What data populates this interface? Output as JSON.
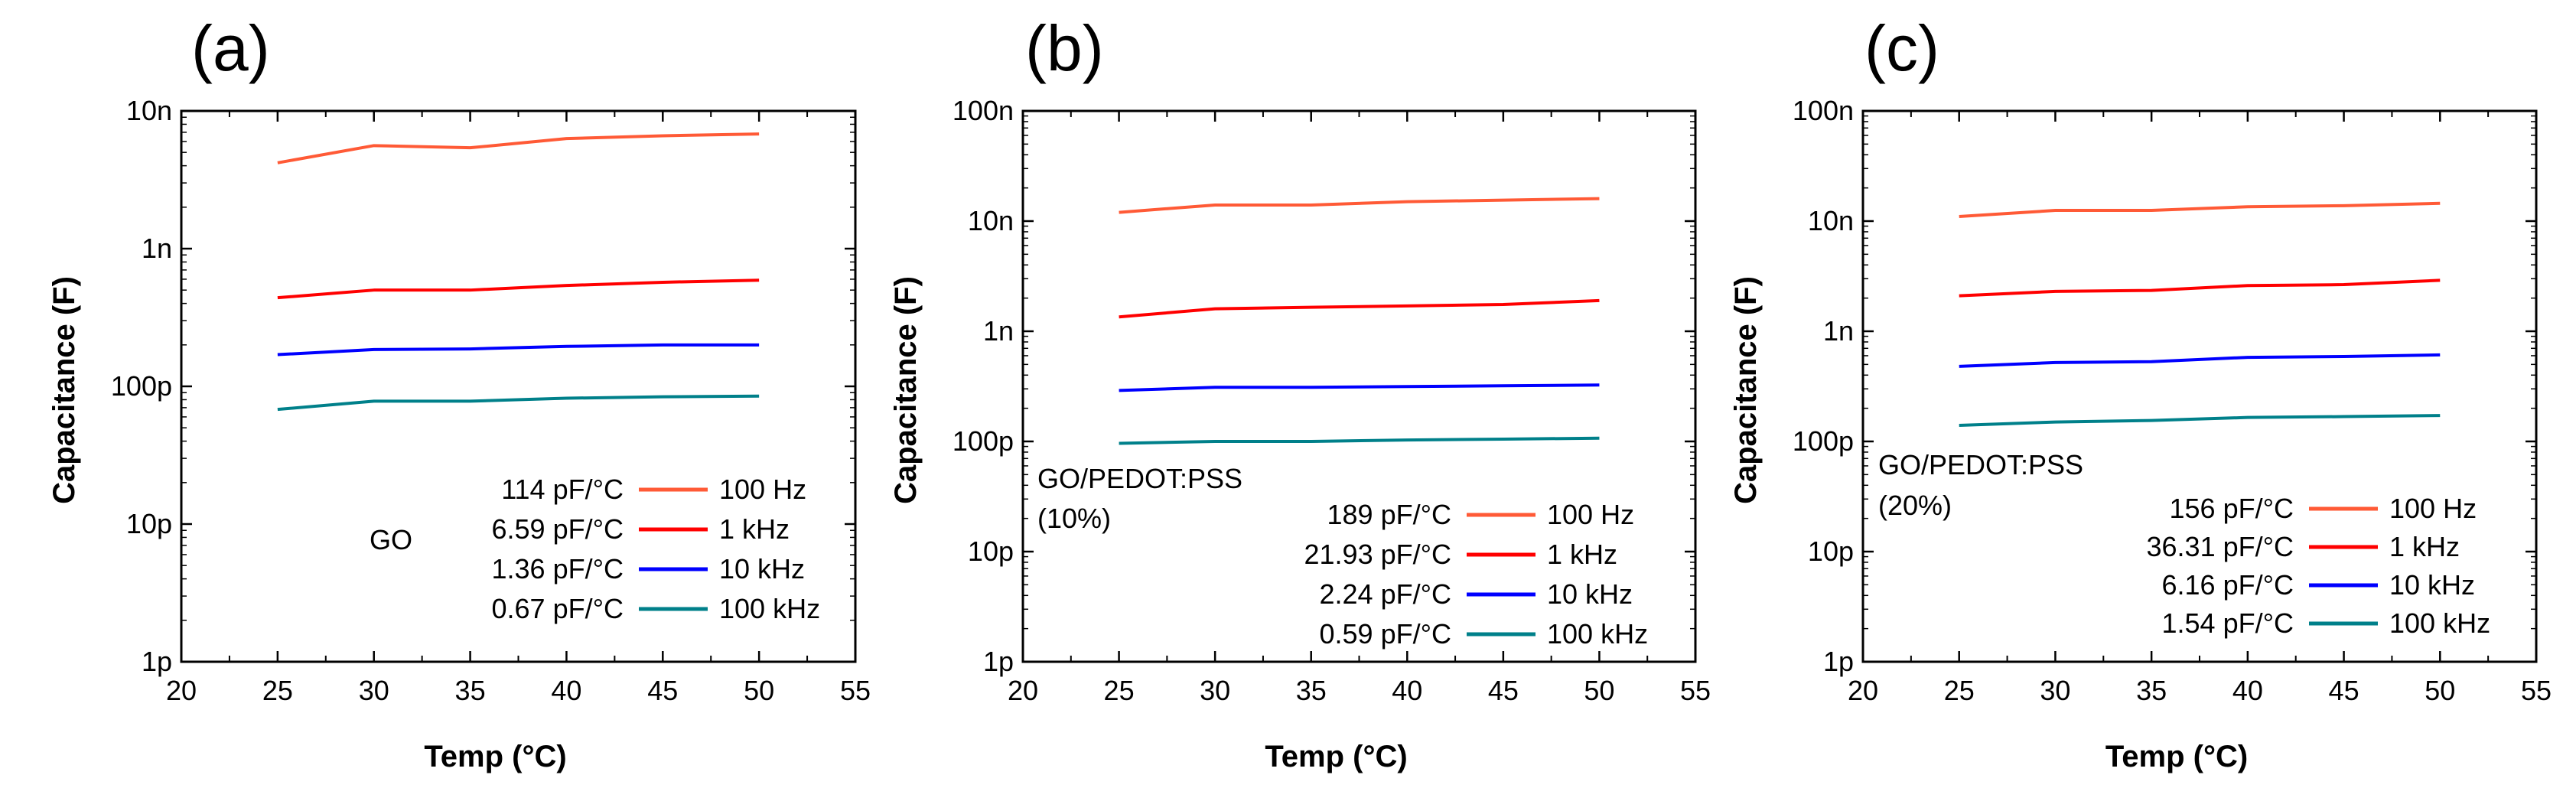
{
  "chart_data": [
    {
      "type": "line",
      "panel_label": "(a)",
      "sample_label": [
        "GO"
      ],
      "xlabel": "Temp (°C)",
      "ylabel": "Capacitance (F)",
      "xlim": [
        20,
        55
      ],
      "xticks": [
        20,
        25,
        30,
        35,
        40,
        45,
        50,
        55
      ],
      "yscale": "log",
      "ylim": [
        1e-12,
        1e-08
      ],
      "yticks": [
        {
          "value": 1e-12,
          "label": "1p"
        },
        {
          "value": 1e-11,
          "label": "10p"
        },
        {
          "value": 1e-10,
          "label": "100p"
        },
        {
          "value": 1e-09,
          "label": "1n"
        },
        {
          "value": 1e-08,
          "label": "10n"
        }
      ],
      "x": [
        25,
        30,
        35,
        40,
        45,
        50
      ],
      "series": [
        {
          "name": "100 Hz",
          "slope": "114 pF/°C",
          "color": "#ff5a36",
          "values": [
            4.2e-09,
            5.6e-09,
            5.4e-09,
            6.3e-09,
            6.6e-09,
            6.8e-09
          ]
        },
        {
          "name": "1 kHz",
          "slope": "6.59 pF/°C",
          "color": "#ff0000",
          "values": [
            4.4e-10,
            5e-10,
            5e-10,
            5.4e-10,
            5.7e-10,
            5.9e-10
          ]
        },
        {
          "name": "10 kHz",
          "slope": "1.36 pF/°C",
          "color": "#0000ff",
          "values": [
            1.7e-10,
            1.85e-10,
            1.87e-10,
            1.95e-10,
            2e-10,
            2e-10
          ]
        },
        {
          "name": "100 kHz",
          "slope": "0.67 pF/°C",
          "color": "#00808a",
          "values": [
            6.8e-11,
            7.8e-11,
            7.8e-11,
            8.2e-11,
            8.4e-11,
            8.5e-11
          ]
        }
      ],
      "grid": false,
      "legend_position": "bottom-right"
    },
    {
      "type": "line",
      "panel_label": "(b)",
      "sample_label": [
        "GO/PEDOT:PSS",
        "(10%)"
      ],
      "xlabel": "Temp (°C)",
      "ylabel": "Capacitance (F)",
      "xlim": [
        20,
        55
      ],
      "xticks": [
        20,
        25,
        30,
        35,
        40,
        45,
        50,
        55
      ],
      "yscale": "log",
      "ylim": [
        1e-12,
        1e-07
      ],
      "yticks": [
        {
          "value": 1e-12,
          "label": "1p"
        },
        {
          "value": 1e-11,
          "label": "10p"
        },
        {
          "value": 1e-10,
          "label": "100p"
        },
        {
          "value": 1e-09,
          "label": "1n"
        },
        {
          "value": 1e-08,
          "label": "10n"
        },
        {
          "value": 1e-07,
          "label": "100n"
        }
      ],
      "x": [
        25,
        30,
        35,
        40,
        45,
        50
      ],
      "series": [
        {
          "name": "100 Hz",
          "slope": "189 pF/°C",
          "color": "#ff5a36",
          "values": [
            1.2e-08,
            1.4e-08,
            1.4e-08,
            1.5e-08,
            1.55e-08,
            1.6e-08
          ]
        },
        {
          "name": "1 kHz",
          "slope": "21.93 pF/°C",
          "color": "#ff0000",
          "values": [
            1.35e-09,
            1.6e-09,
            1.65e-09,
            1.7e-09,
            1.75e-09,
            1.9e-09
          ]
        },
        {
          "name": "10 kHz",
          "slope": "2.24 pF/°C",
          "color": "#0000ff",
          "values": [
            2.9e-10,
            3.1e-10,
            3.1e-10,
            3.15e-10,
            3.2e-10,
            3.25e-10
          ]
        },
        {
          "name": "100 kHz",
          "slope": "0.59 pF/°C",
          "color": "#00808a",
          "values": [
            9.6e-11,
            1e-10,
            1e-10,
            1.03e-10,
            1.05e-10,
            1.07e-10
          ]
        }
      ],
      "grid": false,
      "legend_position": "bottom-right"
    },
    {
      "type": "line",
      "panel_label": "(c)",
      "sample_label": [
        "GO/PEDOT:PSS",
        "(20%)"
      ],
      "xlabel": "Temp (°C)",
      "ylabel": "Capacitance (F)",
      "xlim": [
        20,
        55
      ],
      "xticks": [
        20,
        25,
        30,
        35,
        40,
        45,
        50,
        55
      ],
      "yscale": "log",
      "ylim": [
        1e-12,
        1e-07
      ],
      "yticks": [
        {
          "value": 1e-12,
          "label": "1p"
        },
        {
          "value": 1e-11,
          "label": "10p"
        },
        {
          "value": 1e-10,
          "label": "100p"
        },
        {
          "value": 1e-09,
          "label": "1n"
        },
        {
          "value": 1e-08,
          "label": "10n"
        },
        {
          "value": 1e-07,
          "label": "100n"
        }
      ],
      "x": [
        25,
        30,
        35,
        40,
        45,
        50
      ],
      "series": [
        {
          "name": "100 Hz",
          "slope": "156 pF/°C",
          "color": "#ff5a36",
          "values": [
            1.1e-08,
            1.25e-08,
            1.25e-08,
            1.35e-08,
            1.38e-08,
            1.45e-08
          ]
        },
        {
          "name": "1 kHz",
          "slope": "36.31 pF/°C",
          "color": "#ff0000",
          "values": [
            2.1e-09,
            2.3e-09,
            2.35e-09,
            2.6e-09,
            2.65e-09,
            2.9e-09
          ]
        },
        {
          "name": "10 kHz",
          "slope": "6.16 pF/°C",
          "color": "#0000ff",
          "values": [
            4.8e-10,
            5.2e-10,
            5.3e-10,
            5.8e-10,
            5.9e-10,
            6.1e-10
          ]
        },
        {
          "name": "100 kHz",
          "slope": "1.54 pF/°C",
          "color": "#00808a",
          "values": [
            1.4e-10,
            1.5e-10,
            1.55e-10,
            1.65e-10,
            1.68e-10,
            1.72e-10
          ]
        }
      ],
      "grid": false,
      "legend_position": "bottom-right"
    }
  ]
}
